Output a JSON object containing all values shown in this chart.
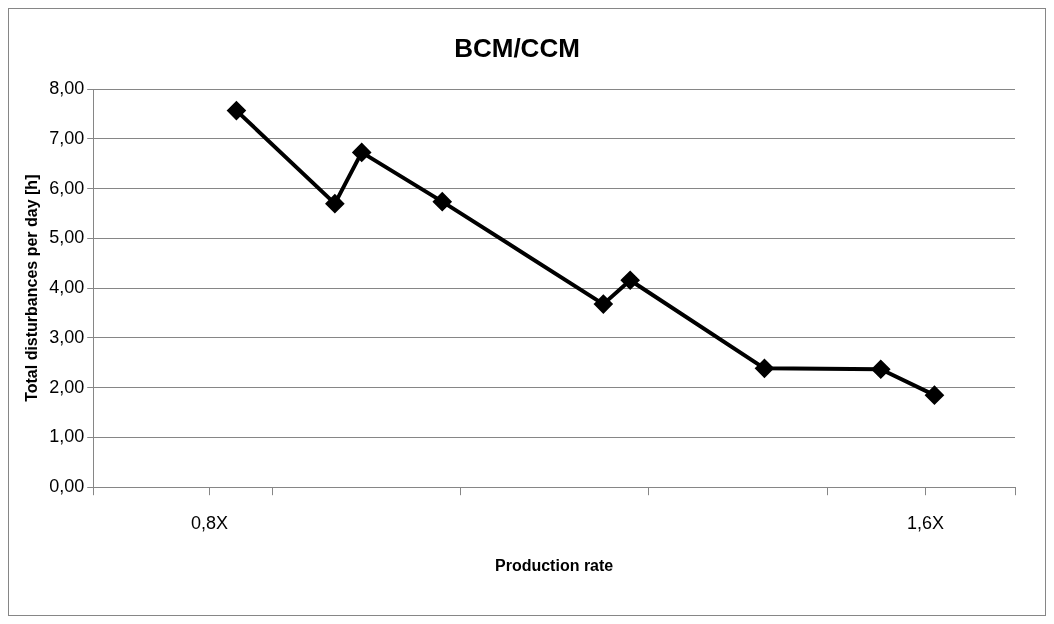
{
  "chart_data": {
    "type": "line",
    "title": "BCM/CCM",
    "xlabel": "Production rate",
    "ylabel": "Total disturbances per day [h]",
    "x": [
      0.83,
      0.94,
      0.97,
      1.06,
      1.24,
      1.27,
      1.42,
      1.55,
      1.61
    ],
    "series": [
      {
        "color": "#000000",
        "values": [
          7.57,
          5.7,
          6.73,
          5.74,
          3.68,
          4.16,
          2.39,
          2.37,
          1.85
        ]
      }
    ],
    "xlim": [
      0.67,
      1.7
    ],
    "xticks": [
      {
        "value": 0.67,
        "label": null
      },
      {
        "value": 0.8,
        "label": "0,8X"
      },
      {
        "value": 0.87,
        "label": null
      },
      {
        "value": 1.08,
        "label": null
      },
      {
        "value": 1.29,
        "label": null
      },
      {
        "value": 1.49,
        "label": null
      },
      {
        "value": 1.6,
        "label": "1,6X"
      },
      {
        "value": 1.7,
        "label": null
      }
    ],
    "ylim": [
      0,
      8
    ],
    "yticks": [
      {
        "value": 0,
        "label": "0,00"
      },
      {
        "value": 1,
        "label": "1,00"
      },
      {
        "value": 2,
        "label": "2,00"
      },
      {
        "value": 3,
        "label": "3,00"
      },
      {
        "value": 4,
        "label": "4,00"
      },
      {
        "value": 5,
        "label": "5,00"
      },
      {
        "value": 6,
        "label": "6,00"
      },
      {
        "value": 7,
        "label": "7,00"
      },
      {
        "value": 8,
        "label": "8,00"
      }
    ],
    "grid": "y",
    "marker": "diamond",
    "line_style": "solid",
    "legend": false
  }
}
